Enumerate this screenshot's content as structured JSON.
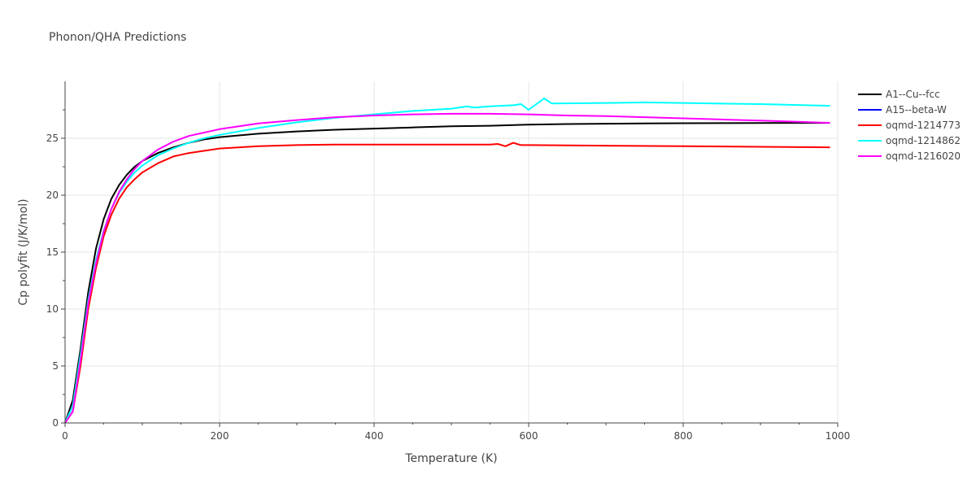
{
  "chart_data": {
    "type": "line",
    "title": "Phonon/QHA Predictions",
    "xlabel": "Temperature (K)",
    "ylabel": "Cp polyfit (J/K/mol)",
    "xlim": [
      0,
      1000
    ],
    "ylim": [
      0,
      30
    ],
    "xticks": [
      0,
      200,
      400,
      600,
      800,
      1000
    ],
    "yticks": [
      0,
      5,
      10,
      15,
      20,
      25
    ],
    "grid": true,
    "legend_position": "top-right",
    "series": [
      {
        "name": "A1--Cu--fcc",
        "color": "#000000",
        "x": [
          0,
          10,
          20,
          30,
          40,
          50,
          60,
          70,
          80,
          90,
          100,
          120,
          140,
          160,
          180,
          200,
          250,
          300,
          350,
          400,
          450,
          500,
          550,
          600,
          650,
          700,
          750,
          800,
          850,
          900,
          950,
          990
        ],
        "y": [
          0,
          2.0,
          6.5,
          11.5,
          15.3,
          17.9,
          19.7,
          20.9,
          21.8,
          22.5,
          23.0,
          23.7,
          24.2,
          24.6,
          24.9,
          25.1,
          25.4,
          25.6,
          25.75,
          25.85,
          25.95,
          26.05,
          26.1,
          26.2,
          26.25,
          26.28,
          26.3,
          26.32,
          26.33,
          26.34,
          26.35,
          26.35
        ]
      },
      {
        "name": "A15--beta-W",
        "color": "#0000ff",
        "x": [],
        "y": []
      },
      {
        "name": "oqmd-1214773",
        "color": "#ff0000",
        "x": [
          0,
          10,
          20,
          30,
          40,
          50,
          60,
          70,
          80,
          90,
          100,
          120,
          140,
          160,
          180,
          200,
          250,
          300,
          350,
          400,
          450,
          500,
          550,
          560,
          570,
          580,
          590,
          600,
          700,
          800,
          900,
          990
        ],
        "y": [
          0,
          1.0,
          5.0,
          10.0,
          13.6,
          16.4,
          18.3,
          19.7,
          20.7,
          21.4,
          22.0,
          22.8,
          23.4,
          23.7,
          23.9,
          24.1,
          24.3,
          24.4,
          24.45,
          24.45,
          24.45,
          24.45,
          24.45,
          24.5,
          24.3,
          24.6,
          24.4,
          24.4,
          24.35,
          24.3,
          24.25,
          24.2
        ]
      },
      {
        "name": "oqmd-1214862",
        "color": "#00ffff",
        "x": [
          0,
          10,
          20,
          30,
          40,
          50,
          60,
          70,
          80,
          90,
          100,
          120,
          140,
          160,
          180,
          200,
          250,
          300,
          350,
          400,
          450,
          500,
          510,
          520,
          530,
          550,
          580,
          590,
          600,
          610,
          620,
          630,
          700,
          750,
          800,
          900,
          990
        ],
        "y": [
          0,
          1.5,
          6.0,
          10.8,
          14.3,
          16.9,
          18.8,
          20.2,
          21.2,
          22.0,
          22.6,
          23.5,
          24.1,
          24.6,
          25.0,
          25.3,
          25.9,
          26.4,
          26.8,
          27.1,
          27.4,
          27.6,
          27.7,
          27.8,
          27.7,
          27.8,
          27.9,
          28.0,
          27.5,
          28.0,
          28.5,
          28.05,
          28.1,
          28.15,
          28.1,
          28.0,
          27.85
        ]
      },
      {
        "name": "oqmd-1216020",
        "color": "#ff00ff",
        "x": [
          0,
          10,
          20,
          30,
          40,
          50,
          60,
          70,
          80,
          90,
          100,
          120,
          140,
          160,
          180,
          200,
          250,
          300,
          350,
          400,
          450,
          500,
          550,
          600,
          650,
          700,
          750,
          800,
          850,
          900,
          950,
          990
        ],
        "y": [
          0,
          1.0,
          5.5,
          10.5,
          14.0,
          16.8,
          18.8,
          20.3,
          21.4,
          22.3,
          23.0,
          24.0,
          24.7,
          25.2,
          25.5,
          25.8,
          26.3,
          26.6,
          26.85,
          27.0,
          27.1,
          27.15,
          27.15,
          27.1,
          27.0,
          26.95,
          26.85,
          26.75,
          26.65,
          26.55,
          26.45,
          26.35
        ]
      }
    ]
  }
}
